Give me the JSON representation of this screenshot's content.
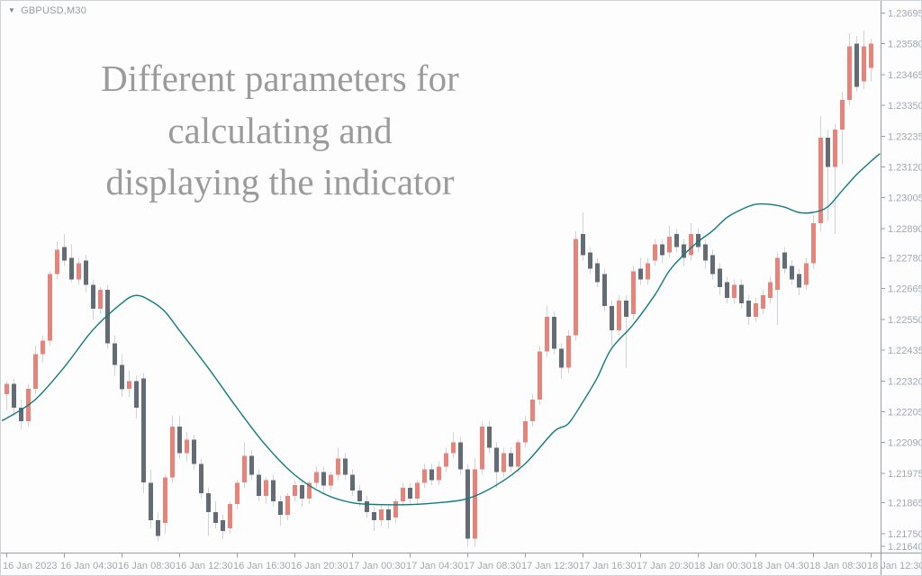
{
  "symbol_label": {
    "dropdown_glyph": "▼",
    "text": "GBPUSD,M30"
  },
  "watermark": {
    "line1": "Different parameters for",
    "line2": "calculating and",
    "line3": "displaying the indicator"
  },
  "colors": {
    "background": "#fdfdfe",
    "border": "#cdd3d9",
    "bull": "#e8837a",
    "bear": "#636b74",
    "wick": "#cdd3d9",
    "ma": "#0f7b80",
    "axis_line": "#969da5",
    "tick_text": "#a2a8b0",
    "watermark_text": "#9b9b9b",
    "symbol_text": "#959ca4"
  },
  "price_axis": {
    "labels": [
      "1.23695",
      "1.23580",
      "1.23465",
      "1.23350",
      "1.23235",
      "1.23120",
      "1.23005",
      "1.22890",
      "1.22780",
      "1.22665",
      "1.22550",
      "1.22435",
      "1.22320",
      "1.22205",
      "1.22090",
      "1.21975",
      "1.21865",
      "1.21750",
      "1.21640"
    ]
  },
  "time_axis": {
    "labels": [
      {
        "text": "16 Jan 2023",
        "candle_index": 0
      },
      {
        "text": "16 Jan 04:30",
        "candle_index": 8
      },
      {
        "text": "16 Jan 08:30",
        "candle_index": 16
      },
      {
        "text": "16 Jan 12:30",
        "candle_index": 24
      },
      {
        "text": "16 Jan 16:30",
        "candle_index": 32
      },
      {
        "text": "16 Jan 20:30",
        "candle_index": 40
      },
      {
        "text": "17 Jan 00:30",
        "candle_index": 48
      },
      {
        "text": "17 Jan 04:30",
        "candle_index": 56
      },
      {
        "text": "17 Jan 08:30",
        "candle_index": 64
      },
      {
        "text": "17 Jan 12:30",
        "candle_index": 72
      },
      {
        "text": "17 Jan 16:30",
        "candle_index": 80
      },
      {
        "text": "17 Jan 20:30",
        "candle_index": 88
      },
      {
        "text": "18 Jan 00:30",
        "candle_index": 96
      },
      {
        "text": "18 Jan 04:30",
        "candle_index": 104
      },
      {
        "text": "18 Jan 08:30",
        "candle_index": 112
      },
      {
        "text": "18 Jan 12:30",
        "candle_index": 120
      }
    ]
  },
  "chart_data": {
    "type": "candlestick",
    "symbol": "GBPUSD",
    "timeframe": "M30",
    "title": "GBPUSD,M30",
    "price_max": 1.23695,
    "price_min": 1.2164,
    "x_range": [
      "16 Jan 2023 00:30",
      "18 Jan 2023 12:30"
    ],
    "grid": false,
    "legend": false,
    "ohlc_format": [
      "open",
      "high",
      "low",
      "close"
    ],
    "candles": [
      [
        1.2227,
        1.2232,
        1.2221,
        1.2231
      ],
      [
        1.2231,
        1.2233,
        1.2219,
        1.2222
      ],
      [
        1.2222,
        1.2225,
        1.2214,
        1.2217
      ],
      [
        1.2217,
        1.2231,
        1.2215,
        1.2229
      ],
      [
        1.2229,
        1.2245,
        1.2227,
        1.2242
      ],
      [
        1.2242,
        1.2249,
        1.2239,
        1.2247
      ],
      [
        1.2247,
        1.2273,
        1.2245,
        1.2272
      ],
      [
        1.2272,
        1.2284,
        1.227,
        1.2281
      ],
      [
        1.2282,
        1.2287,
        1.2275,
        1.2277
      ],
      [
        1.2278,
        1.2283,
        1.2269,
        1.227
      ],
      [
        1.227,
        1.2278,
        1.2268,
        1.2276
      ],
      [
        1.2277,
        1.2279,
        1.2265,
        1.2268
      ],
      [
        1.2268,
        1.227,
        1.2255,
        1.2259
      ],
      [
        1.2259,
        1.2267,
        1.2257,
        1.2266
      ],
      [
        1.2266,
        1.2268,
        1.2244,
        1.2246
      ],
      [
        1.2246,
        1.2249,
        1.2234,
        1.2238
      ],
      [
        1.2238,
        1.2242,
        1.2226,
        1.2229
      ],
      [
        1.2229,
        1.2236,
        1.2226,
        1.2232
      ],
      [
        1.2232,
        1.2234,
        1.2218,
        1.2222
      ],
      [
        1.2233,
        1.2235,
        1.219,
        1.2194
      ],
      [
        1.2194,
        1.2199,
        1.2177,
        1.218
      ],
      [
        1.218,
        1.2183,
        1.2172,
        1.2174
      ],
      [
        1.2179,
        1.2197,
        1.2175,
        1.2196
      ],
      [
        1.2196,
        1.2219,
        1.2194,
        1.2215
      ],
      [
        1.2215,
        1.2219,
        1.2203,
        1.2205
      ],
      [
        1.2205,
        1.2213,
        1.2202,
        1.221
      ],
      [
        1.221,
        1.2212,
        1.2199,
        1.2201
      ],
      [
        1.2201,
        1.2203,
        1.2188,
        1.219
      ],
      [
        1.219,
        1.2192,
        1.2174,
        1.2183
      ],
      [
        1.2183,
        1.2187,
        1.2177,
        1.2179
      ],
      [
        1.218,
        1.2182,
        1.2173,
        1.2176
      ],
      [
        1.2177,
        1.2187,
        1.2175,
        1.2186
      ],
      [
        1.2186,
        1.2195,
        1.2184,
        1.2194
      ],
      [
        1.2194,
        1.2209,
        1.2192,
        1.2204
      ],
      [
        1.2204,
        1.2206,
        1.2195,
        1.2197
      ],
      [
        1.2197,
        1.2199,
        1.2187,
        1.2189
      ],
      [
        1.2189,
        1.2196,
        1.2186,
        1.2195
      ],
      [
        1.2195,
        1.2197,
        1.2185,
        1.2187
      ],
      [
        1.2187,
        1.2189,
        1.2178,
        1.2182
      ],
      [
        1.2182,
        1.219,
        1.218,
        1.2189
      ],
      [
        1.2189,
        1.2195,
        1.2187,
        1.2193
      ],
      [
        1.2193,
        1.2195,
        1.2185,
        1.2188
      ],
      [
        1.2188,
        1.2195,
        1.2186,
        1.2194
      ],
      [
        1.2194,
        1.22,
        1.2192,
        1.2198
      ],
      [
        1.2198,
        1.22,
        1.219,
        1.2193
      ],
      [
        1.2193,
        1.2198,
        1.2191,
        1.2197
      ],
      [
        1.2197,
        1.2207,
        1.2195,
        1.2203
      ],
      [
        1.2203,
        1.2205,
        1.2195,
        1.2197
      ],
      [
        1.2197,
        1.2199,
        1.2189,
        1.2191
      ],
      [
        1.2191,
        1.2193,
        1.2185,
        1.2187
      ],
      [
        1.2187,
        1.2189,
        1.2181,
        1.2183
      ],
      [
        1.2183,
        1.2185,
        1.2176,
        1.218
      ],
      [
        1.218,
        1.2186,
        1.2178,
        1.2184
      ],
      [
        1.2184,
        1.2186,
        1.2177,
        1.218
      ],
      [
        1.2181,
        1.2188,
        1.2179,
        1.2187
      ],
      [
        1.2187,
        1.2194,
        1.2185,
        1.2192
      ],
      [
        1.2192,
        1.2194,
        1.2186,
        1.2188
      ],
      [
        1.2188,
        1.2195,
        1.2186,
        1.2194
      ],
      [
        1.2194,
        1.2201,
        1.2192,
        1.2199
      ],
      [
        1.2199,
        1.2201,
        1.2193,
        1.2195
      ],
      [
        1.2195,
        1.2202,
        1.2193,
        1.22
      ],
      [
        1.22,
        1.2207,
        1.2198,
        1.2205
      ],
      [
        1.2205,
        1.2213,
        1.2203,
        1.2209
      ],
      [
        1.2209,
        1.2211,
        1.2197,
        1.2199
      ],
      [
        1.2199,
        1.2201,
        1.217,
        1.2173
      ],
      [
        1.2173,
        1.2203,
        1.217,
        1.2199
      ],
      [
        1.2199,
        1.2217,
        1.2197,
        1.2215
      ],
      [
        1.2215,
        1.2217,
        1.2205,
        1.2207
      ],
      [
        1.2207,
        1.2209,
        1.2192,
        1.2198
      ],
      [
        1.2198,
        1.2207,
        1.2196,
        1.2205
      ],
      [
        1.2205,
        1.2207,
        1.2198,
        1.22
      ],
      [
        1.22,
        1.221,
        1.2198,
        1.2209
      ],
      [
        1.2209,
        1.2219,
        1.2207,
        1.2217
      ],
      [
        1.2217,
        1.2227,
        1.2215,
        1.2225
      ],
      [
        1.2225,
        1.2245,
        1.2223,
        1.2243
      ],
      [
        1.2243,
        1.226,
        1.2241,
        1.2256
      ],
      [
        1.2256,
        1.2258,
        1.2242,
        1.2244
      ],
      [
        1.2244,
        1.2246,
        1.2233,
        1.2237
      ],
      [
        1.2237,
        1.2251,
        1.2235,
        1.2249
      ],
      [
        1.2249,
        1.2288,
        1.2247,
        1.2285
      ],
      [
        1.2287,
        1.2295,
        1.2277,
        1.2279
      ],
      [
        1.228,
        1.2282,
        1.2272,
        1.2274
      ],
      [
        1.2276,
        1.2278,
        1.2267,
        1.2269
      ],
      [
        1.2272,
        1.2274,
        1.2258,
        1.226
      ],
      [
        1.226,
        1.2262,
        1.2245,
        1.2251
      ],
      [
        1.2251,
        1.2264,
        1.2249,
        1.2262
      ],
      [
        1.2262,
        1.2264,
        1.2237,
        1.2256
      ],
      [
        1.2257,
        1.2275,
        1.2255,
        1.2273
      ],
      [
        1.2274,
        1.2278,
        1.2268,
        1.227
      ],
      [
        1.227,
        1.2278,
        1.2268,
        1.2276
      ],
      [
        1.2277,
        1.2285,
        1.2275,
        1.2283
      ],
      [
        1.2283,
        1.2285,
        1.2276,
        1.2279
      ],
      [
        1.228,
        1.229,
        1.2278,
        1.2286
      ],
      [
        1.2287,
        1.2289,
        1.228,
        1.2282
      ],
      [
        1.2283,
        1.2285,
        1.2275,
        1.2278
      ],
      [
        1.2279,
        1.2291,
        1.2277,
        1.2287
      ],
      [
        1.2287,
        1.2289,
        1.228,
        1.2282
      ],
      [
        1.2283,
        1.2285,
        1.2274,
        1.2277
      ],
      [
        1.2279,
        1.2281,
        1.227,
        1.2272
      ],
      [
        1.2274,
        1.2276,
        1.2264,
        1.2267
      ],
      [
        1.2269,
        1.2271,
        1.2261,
        1.2263
      ],
      [
        1.2263,
        1.227,
        1.2261,
        1.2268
      ],
      [
        1.2268,
        1.227,
        1.2259,
        1.2261
      ],
      [
        1.2262,
        1.2264,
        1.2253,
        1.2256
      ],
      [
        1.2256,
        1.2263,
        1.2254,
        1.2261
      ],
      [
        1.2259,
        1.2266,
        1.2257,
        1.2264
      ],
      [
        1.2263,
        1.2271,
        1.2261,
        1.2269
      ],
      [
        1.2266,
        1.228,
        1.2253,
        1.2278
      ],
      [
        1.228,
        1.2282,
        1.2272,
        1.2274
      ],
      [
        1.2275,
        1.2277,
        1.2268,
        1.227
      ],
      [
        1.2272,
        1.2274,
        1.2264,
        1.2267
      ],
      [
        1.2268,
        1.2278,
        1.2266,
        1.2276
      ],
      [
        1.2276,
        1.2294,
        1.2274,
        1.2291
      ],
      [
        1.2291,
        1.2331,
        1.2288,
        1.2323
      ],
      [
        1.2323,
        1.2326,
        1.2292,
        1.2312
      ],
      [
        1.2312,
        1.2328,
        1.2287,
        1.2326
      ],
      [
        1.2326,
        1.234,
        1.2313,
        1.2337
      ],
      [
        1.2337,
        1.2362,
        1.2335,
        1.2357
      ],
      [
        1.2358,
        1.2361,
        1.234,
        1.2342
      ],
      [
        1.2344,
        1.2363,
        1.2341,
        1.2357
      ],
      [
        1.2349,
        1.236,
        1.2344,
        1.2358
      ]
    ],
    "ma_line": {
      "name": "indicator-line",
      "color": "#0f7b80",
      "points": [
        [
          -1,
          1.2217
        ],
        [
          0,
          1.2218
        ],
        [
          4,
          1.2225
        ],
        [
          8,
          1.2237
        ],
        [
          12,
          1.2251
        ],
        [
          16,
          1.2261
        ],
        [
          18,
          1.2264
        ],
        [
          20,
          1.2262
        ],
        [
          22,
          1.2258
        ],
        [
          24,
          1.2251
        ],
        [
          28,
          1.2237
        ],
        [
          32,
          1.2222
        ],
        [
          36,
          1.2208
        ],
        [
          40,
          1.2197
        ],
        [
          44,
          1.219
        ],
        [
          48,
          1.21865
        ],
        [
          52,
          1.21858
        ],
        [
          56,
          1.21858
        ],
        [
          60,
          1.21865
        ],
        [
          64,
          1.2188
        ],
        [
          68,
          1.2193
        ],
        [
          72,
          1.2201
        ],
        [
          76,
          1.2213
        ],
        [
          78,
          1.2216
        ],
        [
          80,
          1.2224
        ],
        [
          82,
          1.2233
        ],
        [
          84,
          1.2244
        ],
        [
          87,
          1.2253
        ],
        [
          90,
          1.2264
        ],
        [
          92,
          1.2273
        ],
        [
          94,
          1.2279
        ],
        [
          96,
          1.2284
        ],
        [
          98,
          1.2288
        ],
        [
          100,
          1.2293
        ],
        [
          102,
          1.2296
        ],
        [
          104,
          1.2298
        ],
        [
          106,
          1.2298
        ],
        [
          108,
          1.2297
        ],
        [
          110,
          1.2295
        ],
        [
          112,
          1.2295
        ],
        [
          114,
          1.2297
        ],
        [
          116,
          1.2303
        ],
        [
          118,
          1.2309
        ],
        [
          120,
          1.2314
        ],
        [
          121.3,
          1.2317
        ]
      ]
    }
  }
}
